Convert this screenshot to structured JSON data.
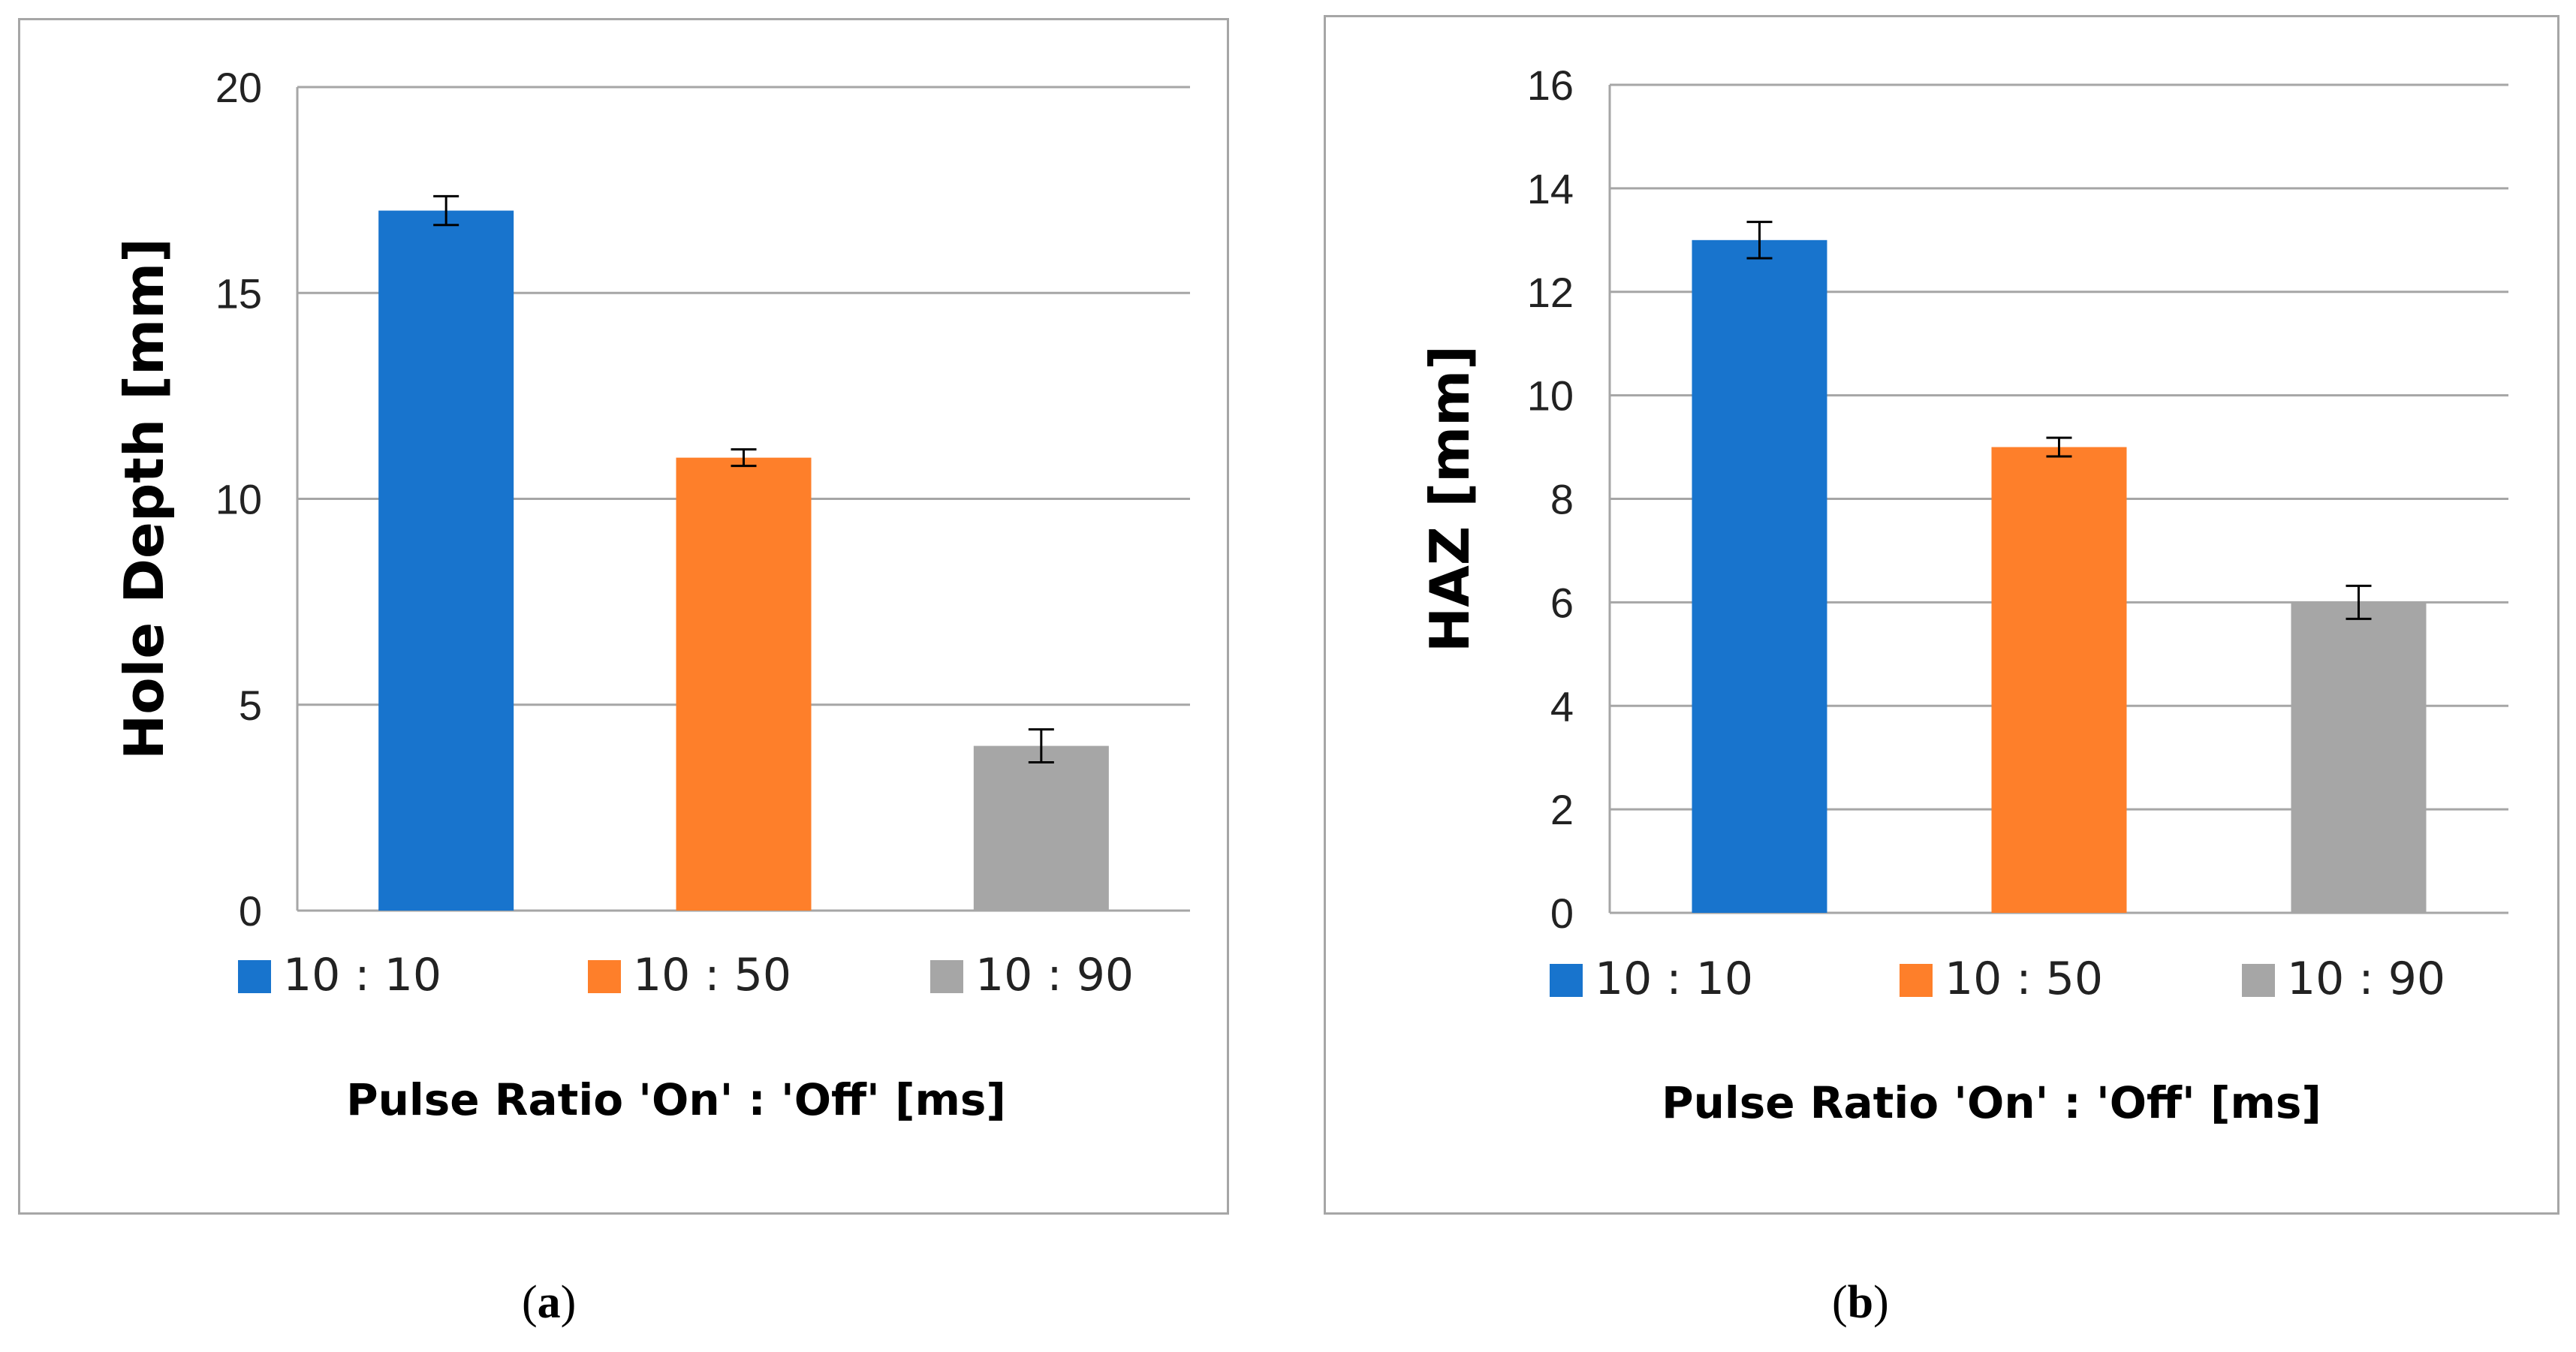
{
  "captions": {
    "a_open": "(",
    "a_letter": "a",
    "a_close": ")",
    "b_open": "(",
    "b_letter": "b",
    "b_close": ")"
  },
  "colors": {
    "blue": "#1874cd",
    "orange": "#fe7f2a",
    "gray": "#a6a6a6",
    "grid": "#a6a6a6",
    "errbar": "#000000"
  },
  "chart_data": [
    {
      "type": "bar",
      "id": "a",
      "categories": [
        "10 : 10",
        "10 : 50",
        "10 : 90"
      ],
      "values": [
        17,
        11,
        4
      ],
      "errors": [
        0.35,
        0.2,
        0.4
      ],
      "ylabel": "Hole Depth [mm]",
      "xlabel": "Pulse Ratio 'On' : 'Off' [ms]",
      "ylim": [
        0,
        20
      ],
      "yticks": [
        0,
        5,
        10,
        15,
        20
      ],
      "legend_position": "bottom",
      "grid": true
    },
    {
      "type": "bar",
      "id": "b",
      "categories": [
        "10 : 10",
        "10 : 50",
        "10 : 90"
      ],
      "values": [
        13,
        9,
        6
      ],
      "errors": [
        0.35,
        0.18,
        0.32
      ],
      "ylabel": "HAZ [mm]",
      "xlabel": "Pulse Ratio 'On' : 'Off' [ms]",
      "ylim": [
        0,
        16
      ],
      "yticks": [
        0,
        2,
        4,
        6,
        8,
        10,
        12,
        14,
        16
      ],
      "legend_position": "bottom",
      "grid": true
    }
  ]
}
